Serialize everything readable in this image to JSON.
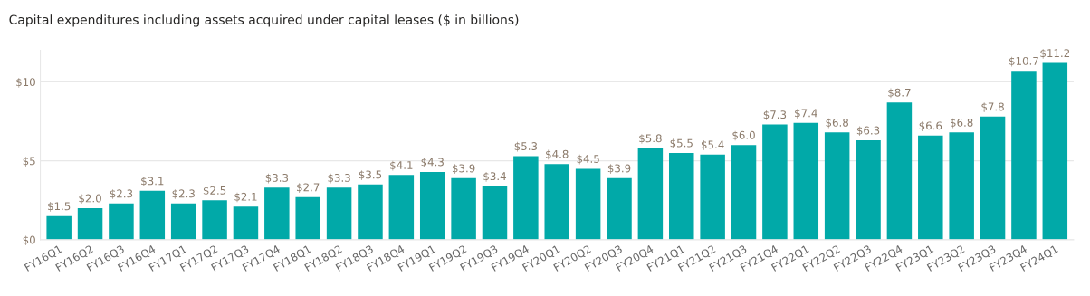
{
  "chart_data": {
    "type": "bar",
    "title": "Capital expenditures including assets acquired under capital leases ($ in billions)",
    "categories": [
      "FY16Q1",
      "FY16Q2",
      "FY16Q3",
      "FY16Q4",
      "FY17Q1",
      "FY17Q2",
      "FY17Q3",
      "FY17Q4",
      "FY18Q1",
      "FY18Q2",
      "FY18Q3",
      "FY18Q4",
      "FY19Q1",
      "FY19Q2",
      "FY19Q3",
      "FY19Q4",
      "FY20Q1",
      "FY20Q2",
      "FY20Q3",
      "FY20Q4",
      "FY21Q1",
      "FY21Q2",
      "FY21Q3",
      "FY21Q4",
      "FY22Q1",
      "FY22Q2",
      "FY22Q3",
      "FY22Q4",
      "FY23Q1",
      "FY23Q2",
      "FY23Q3",
      "FY23Q4",
      "FY24Q1"
    ],
    "values": [
      1.5,
      2.0,
      2.3,
      3.1,
      2.3,
      2.5,
      2.1,
      3.3,
      2.7,
      3.3,
      3.5,
      4.1,
      4.3,
      3.9,
      3.4,
      5.3,
      4.8,
      4.5,
      3.9,
      5.8,
      5.5,
      5.4,
      6.0,
      7.3,
      7.4,
      6.8,
      6.3,
      8.7,
      6.6,
      6.8,
      7.8,
      10.7,
      11.2
    ],
    "value_labels": [
      "$1.5",
      "$2.0",
      "$2.3",
      "$3.1",
      "$2.3",
      "$2.5",
      "$2.1",
      "$3.3",
      "$2.7",
      "$3.3",
      "$3.5",
      "$4.1",
      "$4.3",
      "$3.9",
      "$3.4",
      "$5.3",
      "$4.8",
      "$4.5",
      "$3.9",
      "$5.8",
      "$5.5",
      "$5.4",
      "$6.0",
      "$7.3",
      "$7.4",
      "$6.8",
      "$6.3",
      "$8.7",
      "$6.6",
      "$6.8",
      "$7.8",
      "$10.7",
      "$11.2"
    ],
    "color": "#01a9a8",
    "ylim": [
      0,
      12
    ],
    "yticks": [
      {
        "value": 0,
        "label": "$0"
      },
      {
        "value": 5,
        "label": "$5"
      },
      {
        "value": 10,
        "label": "$10"
      }
    ],
    "grid": "y",
    "legend": false
  }
}
